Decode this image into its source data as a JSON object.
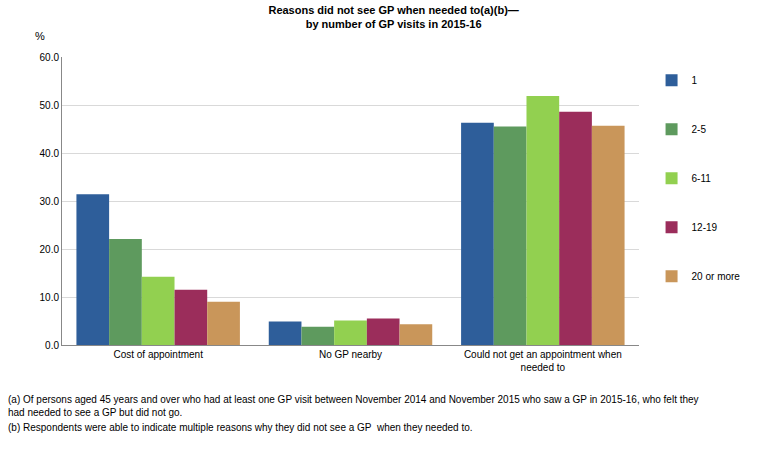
{
  "chart_data": {
    "type": "bar",
    "title": "Reasons did not see GP when needed to(a)(b)—\nby number of GP visits in 2015-16",
    "ylabel": "%",
    "categories": [
      "Cost of appointment",
      "No GP nearby",
      "Could not get an appointment when\nneeded to"
    ],
    "series": [
      {
        "name": "1",
        "color": "#2e5e9a",
        "values": [
          31.4,
          4.9,
          46.3
        ]
      },
      {
        "name": "2-5",
        "color": "#5e9a5e",
        "values": [
          22.1,
          3.8,
          45.5
        ]
      },
      {
        "name": "6-11",
        "color": "#92d050",
        "values": [
          14.2,
          5.1,
          51.9
        ]
      },
      {
        "name": "12-19",
        "color": "#9b2d5b",
        "values": [
          11.5,
          5.5,
          48.6
        ]
      },
      {
        "name": "20 or more",
        "color": "#c9965a",
        "values": [
          9.0,
          4.3,
          45.7
        ]
      }
    ],
    "ylim": [
      0,
      60
    ],
    "yticks": [
      {
        "value": 0,
        "label": "0.0"
      },
      {
        "value": 10,
        "label": "10.0"
      },
      {
        "value": 20,
        "label": "20.0"
      },
      {
        "value": 30,
        "label": "30.0"
      },
      {
        "value": 40,
        "label": "40.0"
      },
      {
        "value": 50,
        "label": "50.0"
      },
      {
        "value": 60,
        "label": "60.0"
      }
    ],
    "grid": true,
    "legend": "right",
    "notes": [
      "(a) Of persons aged 45 years and over who had at least one GP visit between November 2014 and November 2015 who saw a GP in 2015-16, who felt they\nhad needed to see a GP but did not go.",
      "(b) Respondents were able to indicate multiple reasons why they did not see a GP  when they needed to."
    ]
  }
}
